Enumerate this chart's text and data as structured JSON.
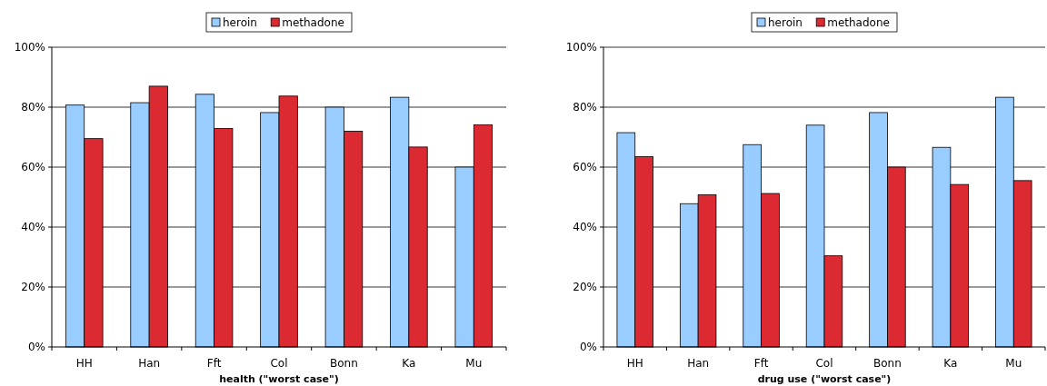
{
  "chart_data": [
    {
      "type": "bar",
      "xlabel": "health (\"worst case\")",
      "categories": [
        "HH",
        "Han",
        "Fft",
        "Col",
        "Bonn",
        "Ka",
        "Mu"
      ],
      "series": [
        {
          "name": "heroin",
          "color": "#99ccff",
          "values": [
            80.7,
            81.5,
            84.3,
            78.2,
            80,
            83.3,
            60
          ]
        },
        {
          "name": "methadone",
          "color": "#dc2a32",
          "values": [
            69.5,
            87,
            72.9,
            83.7,
            72,
            66.7,
            74.1
          ]
        }
      ],
      "ylim": [
        0,
        100
      ],
      "yticks": [
        {
          "value": 0,
          "label": "0%"
        },
        {
          "value": 20,
          "label": "20%"
        },
        {
          "value": 40,
          "label": "40%"
        },
        {
          "value": 60,
          "label": "60%"
        },
        {
          "value": 80,
          "label": "80%"
        },
        {
          "value": 100,
          "label": "100%"
        }
      ],
      "grid": "y",
      "legend": "top"
    },
    {
      "type": "bar",
      "xlabel": "drug use (\"worst case\")",
      "categories": [
        "HH",
        "Han",
        "Fft",
        "Col",
        "Bonn",
        "Ka",
        "Mu"
      ],
      "series": [
        {
          "name": "heroin",
          "color": "#99ccff",
          "values": [
            71.5,
            47.8,
            67.5,
            74,
            78.2,
            66.6,
            83.3
          ]
        },
        {
          "name": "methadone",
          "color": "#dc2a32",
          "values": [
            63.5,
            50.8,
            51.2,
            30.4,
            60,
            54.2,
            55.5
          ]
        }
      ],
      "ylim": [
        0,
        100
      ],
      "yticks": [
        {
          "value": 0,
          "label": "0%"
        },
        {
          "value": 20,
          "label": "20%"
        },
        {
          "value": 40,
          "label": "40%"
        },
        {
          "value": 60,
          "label": "60%"
        },
        {
          "value": 80,
          "label": "80%"
        },
        {
          "value": 100,
          "label": "100%"
        }
      ],
      "grid": "y",
      "legend": "top"
    }
  ]
}
